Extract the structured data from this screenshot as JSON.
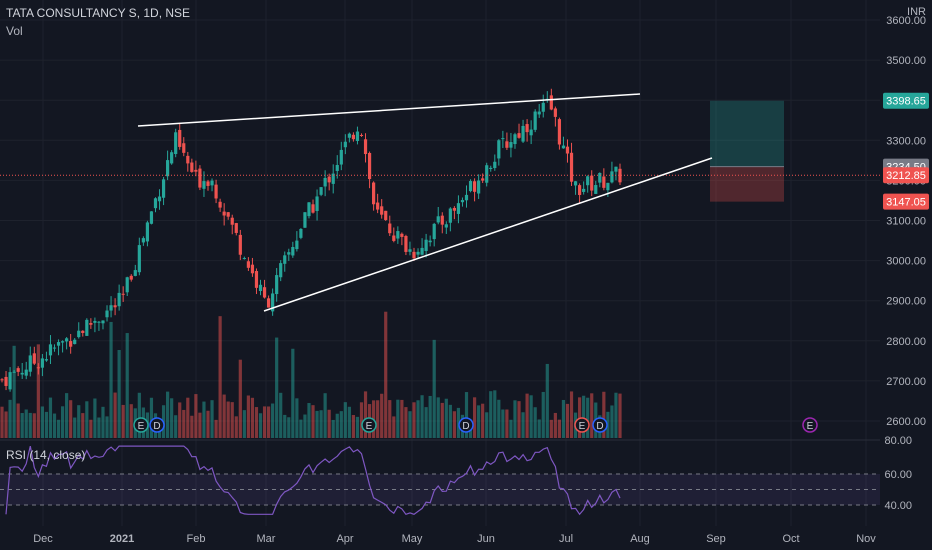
{
  "header": {
    "symbol_line": "TATA CONSULTANCY S, 1D, NSE",
    "volume_label": "Vol",
    "currency": "INR"
  },
  "rsi": {
    "label": "RSI (14, close)",
    "ticks": [
      "80.00",
      "60.00",
      "40.00"
    ]
  },
  "price_axis": {
    "ticks": [
      "3600.00",
      "3500.00",
      "3400.00",
      "3300.00",
      "3200.00",
      "3100.00",
      "3000.00",
      "2900.00",
      "2800.00",
      "2700.00",
      "2600.00"
    ]
  },
  "price_tags": [
    {
      "label": "3398.65",
      "color": "#26a69a"
    },
    {
      "label": "3234.50",
      "color": "#787b86"
    },
    {
      "label": "3212.85",
      "color": "#ef5350"
    },
    {
      "label": "3147.05",
      "color": "#ef5350"
    }
  ],
  "time_axis": {
    "ticks": [
      "Dec",
      "2021",
      "Feb",
      "Mar",
      "Apr",
      "May",
      "Jun",
      "Jul",
      "Aug",
      "Sep",
      "Oct",
      "Nov"
    ]
  },
  "event_markers": [
    "E",
    "D",
    "E",
    "D",
    "E",
    "D",
    "E"
  ],
  "colors": {
    "up": "#26a69a",
    "down": "#ef5350",
    "rsi_line": "#7e57c2",
    "trendline": "#ffffff",
    "background": "#131722"
  },
  "chart_data": {
    "type": "candlestick",
    "price_ylim": [
      2600,
      3600
    ],
    "rsi_ylim": [
      30,
      80
    ],
    "close_path_anchors": [
      {
        "label": "Nov end",
        "close": 2700
      },
      {
        "label": "Dec mid",
        "close": 2760
      },
      {
        "label": "2021 start",
        "close": 2900
      },
      {
        "label": "Jan mid",
        "close": 3300
      },
      {
        "label": "Jan end",
        "close": 3200
      },
      {
        "label": "Feb start",
        "close": 3210
      },
      {
        "label": "Feb end",
        "close": 2890
      },
      {
        "label": "Mar mid",
        "close": 3080
      },
      {
        "label": "Apr start",
        "close": 3350
      },
      {
        "label": "Apr mid",
        "close": 3120
      },
      {
        "label": "May start",
        "close": 3020
      },
      {
        "label": "May end",
        "close": 3130
      },
      {
        "label": "Jun mid",
        "close": 3280
      },
      {
        "label": "Jun end",
        "close": 3390
      },
      {
        "label": "Jul mid",
        "close": 3180
      },
      {
        "label": "Jul end",
        "close": 3213
      }
    ],
    "last_close": 3212.85,
    "long_position": {
      "target": 3398.65,
      "entry": 3234.5,
      "stop": 3147.05
    },
    "rsi_levels": [
      60,
      40
    ]
  }
}
